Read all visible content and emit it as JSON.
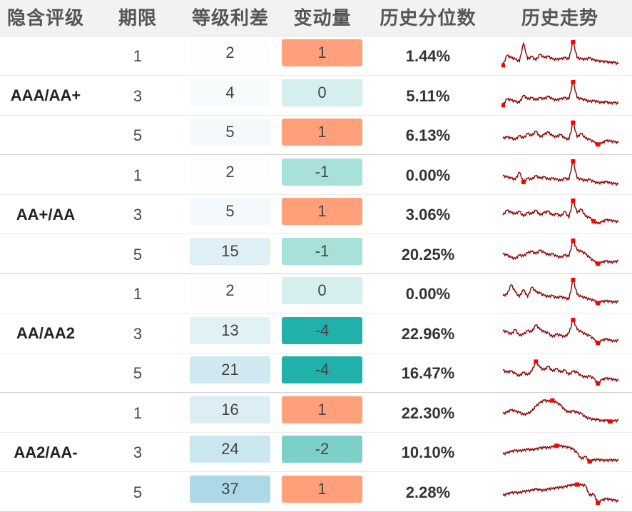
{
  "headers": {
    "rating": "隐含评级",
    "term": "期限",
    "spread": "等级利差",
    "change": "变动量",
    "percentile": "历史分位数",
    "trend": "历史走势"
  },
  "colors": {
    "sparkline": "#8b0000",
    "marker": "#ff0000",
    "positive_change": "#ffa07a",
    "zero_change": "#d4efed",
    "change_minus_1": "#a8e0da",
    "change_minus_2": "#7dd0c8",
    "change_minus_4": "#20b2aa"
  },
  "groups": [
    {
      "rating": "AAA/AA+",
      "rows": [
        {
          "term": "1",
          "spread": "2",
          "change": "1",
          "percentile": "1.44%"
        },
        {
          "term": "3",
          "spread": "4",
          "change": "0",
          "percentile": "5.11%"
        },
        {
          "term": "5",
          "spread": "5",
          "change": "1",
          "percentile": "6.13%"
        }
      ]
    },
    {
      "rating": "AA+/AA",
      "rows": [
        {
          "term": "1",
          "spread": "2",
          "change": "-1",
          "percentile": "0.00%"
        },
        {
          "term": "3",
          "spread": "5",
          "change": "1",
          "percentile": "3.06%"
        },
        {
          "term": "5",
          "spread": "15",
          "change": "-1",
          "percentile": "20.25%"
        }
      ]
    },
    {
      "rating": "AA/AA2",
      "rows": [
        {
          "term": "1",
          "spread": "2",
          "change": "0",
          "percentile": "0.00%"
        },
        {
          "term": "3",
          "spread": "13",
          "change": "-4",
          "percentile": "22.96%"
        },
        {
          "term": "5",
          "spread": "21",
          "change": "-4",
          "percentile": "16.47%"
        }
      ]
    },
    {
      "rating": "AA2/AA-",
      "rows": [
        {
          "term": "1",
          "spread": "16",
          "change": "1",
          "percentile": "22.30%"
        },
        {
          "term": "3",
          "spread": "24",
          "change": "-2",
          "percentile": "10.10%"
        },
        {
          "term": "5",
          "spread": "37",
          "change": "1",
          "percentile": "2.28%"
        }
      ]
    }
  ],
  "chart_data": {
    "type": "table",
    "title": "",
    "columns": [
      "隐含评级",
      "期限",
      "等级利差",
      "变动量",
      "历史分位数",
      "历史走势"
    ],
    "series": [
      {
        "name": "AAA/AA+ 1",
        "values": [
          0.05,
          0.45,
          0.35,
          0.3,
          0.2,
          0.95,
          0.3,
          0.4,
          0.25,
          0.5,
          0.35,
          0.4,
          0.3,
          0.28,
          0.3,
          0.35,
          0.3,
          1.0,
          0.35,
          0.3,
          0.28,
          0.35,
          0.25,
          0.22,
          0.2,
          0.18,
          0.15,
          0.16,
          0.1
        ],
        "markers": [
          0,
          17
        ]
      },
      {
        "name": "AAA/AA+ 3",
        "values": [
          0.05,
          0.3,
          0.25,
          0.2,
          0.15,
          0.45,
          0.3,
          0.35,
          0.25,
          0.35,
          0.3,
          0.4,
          0.3,
          0.25,
          0.3,
          0.35,
          0.3,
          1.0,
          0.35,
          0.3,
          0.25,
          0.2,
          0.22,
          0.18,
          0.15,
          0.18,
          0.12,
          0.15,
          0.12
        ],
        "markers": [
          0,
          17
        ]
      },
      {
        "name": "AAA/AA+ 5",
        "values": [
          0.3,
          0.35,
          0.3,
          0.25,
          0.4,
          0.3,
          0.5,
          0.4,
          0.6,
          0.35,
          0.45,
          0.55,
          0.4,
          0.35,
          0.45,
          0.3,
          0.25,
          0.95,
          0.35,
          0.5,
          0.3,
          0.25,
          0.15,
          0.05,
          0.1,
          0.2,
          0.18,
          0.15,
          0.12
        ],
        "markers": [
          17,
          23
        ]
      },
      {
        "name": "AA+/AA 1",
        "values": [
          0.4,
          0.35,
          0.3,
          0.25,
          0.55,
          0.15,
          0.3,
          0.25,
          0.4,
          0.3,
          0.35,
          0.25,
          0.3,
          0.25,
          0.2,
          0.3,
          0.25,
          1.0,
          0.3,
          0.25,
          0.2,
          0.25,
          0.15,
          0.1,
          0.12,
          0.15,
          0.1,
          0.08,
          0.05
        ],
        "markers": [
          5,
          17
        ]
      },
      {
        "name": "AA+/AA 3",
        "values": [
          0.4,
          0.6,
          0.5,
          0.45,
          0.55,
          0.35,
          0.5,
          0.45,
          0.6,
          0.4,
          0.5,
          0.55,
          0.4,
          0.45,
          0.35,
          0.55,
          0.3,
          1.0,
          0.5,
          0.65,
          0.35,
          0.3,
          0.15,
          0.05,
          0.12,
          0.2,
          0.18,
          0.15,
          0.12
        ],
        "markers": [
          17,
          22
        ]
      },
      {
        "name": "AA+/AA 5",
        "values": [
          0.45,
          0.4,
          0.3,
          0.25,
          0.4,
          0.35,
          0.5,
          0.55,
          0.45,
          0.6,
          0.5,
          0.4,
          0.45,
          0.35,
          0.3,
          0.4,
          0.35,
          1.0,
          0.6,
          0.55,
          0.45,
          0.3,
          0.15,
          0.05,
          0.1,
          0.15,
          0.1,
          0.12,
          0.15
        ],
        "markers": [
          17,
          23
        ]
      },
      {
        "name": "AA/AA2 1",
        "values": [
          0.35,
          0.4,
          0.8,
          0.5,
          0.3,
          0.6,
          0.3,
          0.7,
          0.5,
          0.45,
          0.35,
          0.3,
          0.35,
          0.25,
          0.3,
          0.25,
          0.2,
          1.0,
          0.4,
          0.3,
          0.25,
          0.2,
          0.15,
          0.05,
          0.1,
          0.12,
          0.1,
          0.08,
          0.1
        ],
        "markers": [
          17,
          23
        ]
      },
      {
        "name": "AA/AA2 3",
        "values": [
          0.55,
          0.5,
          0.4,
          0.6,
          0.35,
          0.4,
          0.55,
          0.5,
          0.8,
          0.6,
          0.5,
          0.45,
          0.3,
          0.4,
          0.35,
          0.3,
          0.45,
          1.0,
          0.6,
          0.5,
          0.4,
          0.35,
          0.2,
          0.05,
          0.15,
          0.2,
          0.15,
          0.12,
          0.15
        ],
        "markers": [
          17,
          23
        ]
      },
      {
        "name": "AA/AA2 5",
        "values": [
          0.55,
          0.45,
          0.5,
          0.4,
          0.3,
          0.45,
          0.35,
          0.5,
          0.9,
          0.65,
          0.55,
          0.7,
          0.5,
          0.6,
          0.45,
          0.55,
          0.35,
          0.5,
          0.45,
          0.3,
          0.25,
          0.3,
          0.2,
          0.0,
          0.15,
          0.2,
          0.18,
          0.15,
          0.12
        ],
        "markers": [
          8,
          23
        ]
      },
      {
        "name": "AA2/AA- 1",
        "values": [
          0.4,
          0.45,
          0.55,
          0.5,
          0.45,
          0.35,
          0.4,
          0.5,
          0.7,
          0.85,
          0.95,
          0.9,
          0.95,
          0.85,
          0.75,
          0.55,
          0.45,
          0.5,
          0.45,
          0.4,
          0.25,
          0.2,
          0.15,
          0.15,
          0.1,
          0.12,
          0.08,
          0.1,
          0.12
        ],
        "markers": [
          12,
          26
        ]
      },
      {
        "name": "AA2/AA- 3",
        "values": [
          0.35,
          0.4,
          0.45,
          0.5,
          0.48,
          0.5,
          0.55,
          0.52,
          0.55,
          0.6,
          0.62,
          0.6,
          0.65,
          0.7,
          0.68,
          0.65,
          0.62,
          0.55,
          0.4,
          0.15,
          0.25,
          0.05,
          0.1,
          0.12,
          0.1,
          0.08,
          0.1,
          0.1,
          0.08
        ],
        "markers": [
          13,
          21
        ]
      },
      {
        "name": "AA2/AA- 5",
        "values": [
          0.3,
          0.35,
          0.4,
          0.42,
          0.4,
          0.45,
          0.48,
          0.5,
          0.55,
          0.52,
          0.5,
          0.55,
          0.58,
          0.6,
          0.62,
          0.65,
          0.7,
          0.72,
          0.75,
          0.72,
          0.7,
          0.3,
          0.35,
          0.0,
          0.1,
          0.15,
          0.12,
          0.1,
          0.05
        ],
        "markers": [
          18,
          23
        ]
      }
    ]
  }
}
